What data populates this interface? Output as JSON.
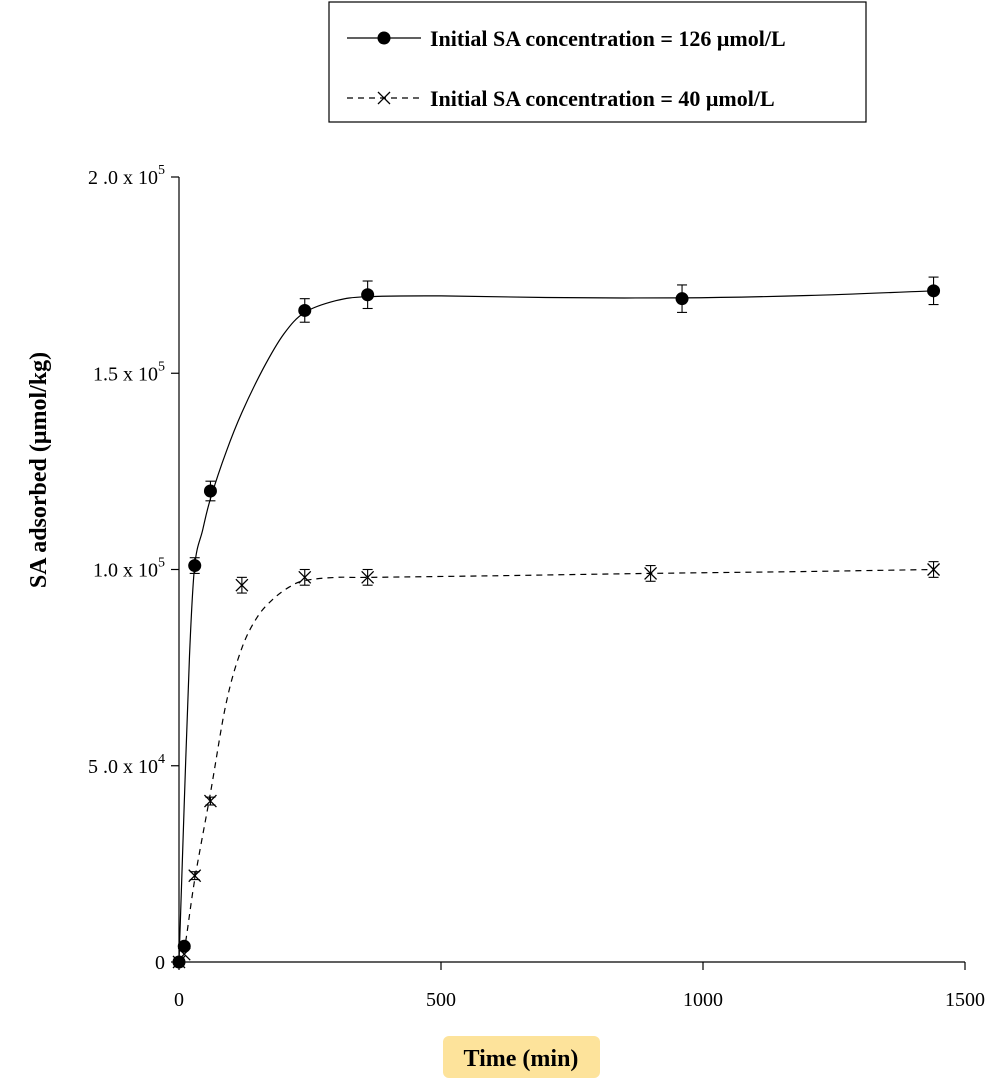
{
  "chart_data": {
    "type": "scatter",
    "xlabel": "Time (min)",
    "ylabel": "SA adsorbed (μmol/kg)",
    "xlim": [
      0,
      1500
    ],
    "ylim": [
      0,
      200000
    ],
    "x_ticks": [
      {
        "value": 0,
        "label": "0"
      },
      {
        "value": 500,
        "label": "500"
      },
      {
        "value": 1000,
        "label": "1000"
      },
      {
        "value": 1500,
        "label": "1500"
      }
    ],
    "y_ticks": [
      {
        "value": 0,
        "label": "0",
        "mantissa": "",
        "exponent": ""
      },
      {
        "value": 50000,
        "label": "",
        "mantissa": "5 .0 x 10",
        "exponent": "4"
      },
      {
        "value": 100000,
        "label": "",
        "mantissa": "1.0 x 10",
        "exponent": "5"
      },
      {
        "value": 150000,
        "label": "",
        "mantissa": "1.5 x 10",
        "exponent": "5"
      },
      {
        "value": 200000,
        "label": "",
        "mantissa": "2 .0 x 10",
        "exponent": "5"
      }
    ],
    "grid": false,
    "legend_position": "top-right",
    "series": [
      {
        "name": "Initial SA concentration = 126 μmol/L",
        "marker": "filled-circle",
        "line": "solid",
        "x": [
          0,
          10,
          30,
          60,
          240,
          360,
          960,
          1440
        ],
        "y": [
          0,
          4000,
          101000,
          120000,
          166000,
          170000,
          169000,
          171000
        ],
        "error": [
          0,
          0,
          2000,
          2500,
          3000,
          3500,
          3500,
          3500
        ],
        "fit_x": [
          0,
          10,
          20,
          30,
          45,
          60,
          90,
          120,
          160,
          200,
          240,
          300,
          360,
          500,
          700,
          960,
          1200,
          1440
        ],
        "fit_y": [
          0,
          40000,
          78000,
          101000,
          110000,
          118000,
          130000,
          140000,
          151000,
          160000,
          165500,
          168500,
          169500,
          169700,
          169300,
          169200,
          169800,
          171000
        ]
      },
      {
        "name": "Initial SA concentration = 40 μmol/L",
        "marker": "x-cross",
        "line": "dashed",
        "x": [
          0,
          10,
          30,
          60,
          120,
          240,
          360,
          900,
          1440
        ],
        "y": [
          0,
          2000,
          22000,
          41000,
          96000,
          98000,
          98000,
          99000,
          100000
        ],
        "error": [
          0,
          0,
          1000,
          1000,
          2000,
          2000,
          2000,
          2000,
          2000
        ],
        "fit_x": [
          0,
          10,
          30,
          60,
          90,
          120,
          150,
          180,
          210,
          240,
          300,
          360,
          600,
          900,
          1200,
          1440
        ],
        "fit_y": [
          0,
          3000,
          21000,
          43000,
          66000,
          80000,
          88000,
          92500,
          95500,
          97200,
          98000,
          98000,
          98400,
          99000,
          99500,
          100000
        ]
      }
    ]
  }
}
